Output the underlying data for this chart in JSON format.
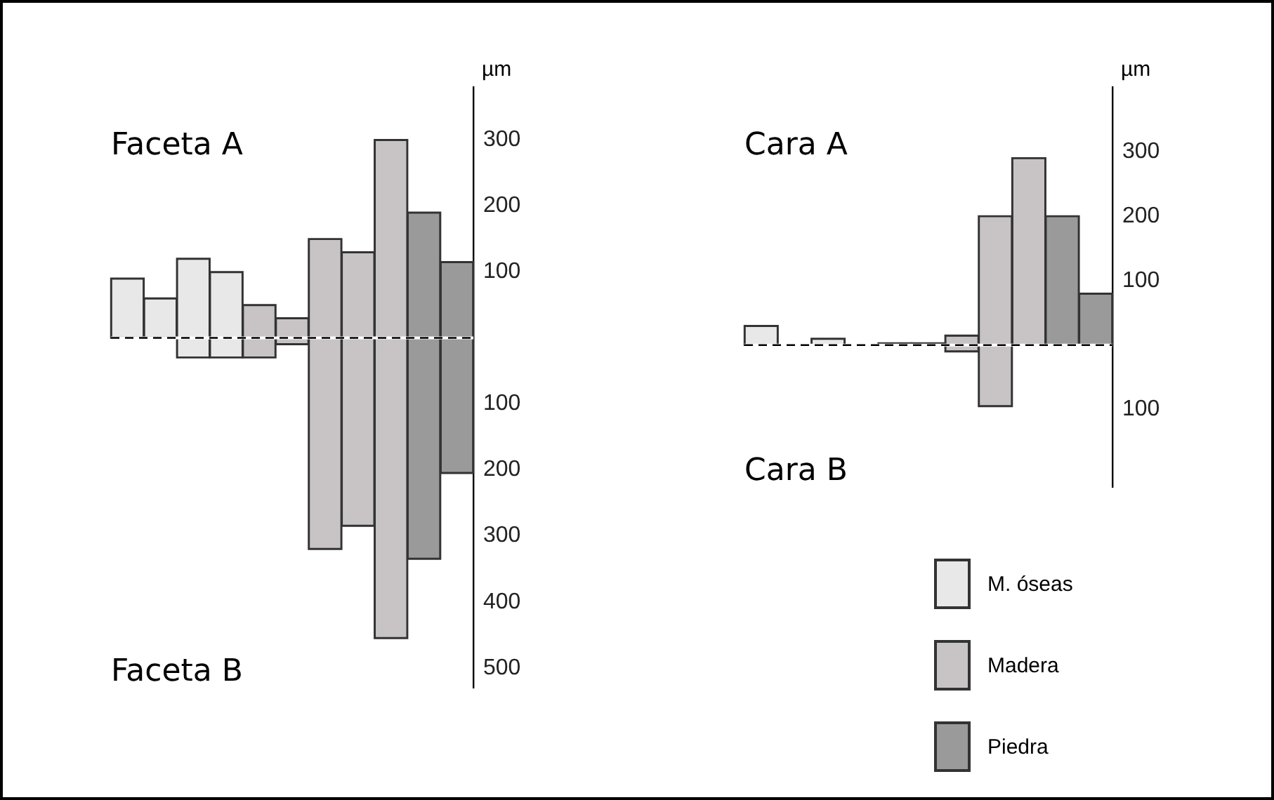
{
  "chart_data": [
    {
      "type": "bar",
      "categories": [
        null,
        null,
        null,
        null,
        null,
        null,
        null,
        null,
        null,
        null,
        null
      ],
      "series": [
        {
          "color": "#e8e8e8",
          "values": [
            90,
            60,
            150,
            130,
            null,
            null,
            null,
            null,
            null,
            null,
            null
          ],
          "base": [
            0,
            0,
            -30,
            -30,
            null,
            null,
            null,
            null,
            null,
            null,
            null
          ]
        },
        {
          "color": "#c8c4c6",
          "values": [
            null,
            null,
            null,
            null,
            80,
            40,
            470,
            415,
            755,
            null,
            null
          ],
          "base": [
            null,
            null,
            null,
            null,
            -30,
            -10,
            -320,
            -285,
            -455,
            null,
            null
          ]
        },
        {
          "color": "#9a9a9a",
          "values": [
            null,
            null,
            null,
            null,
            null,
            null,
            null,
            null,
            null,
            525,
            320
          ],
          "base": [
            null,
            null,
            null,
            null,
            null,
            null,
            null,
            null,
            null,
            -335,
            -205
          ]
        }
      ],
      "ylabel": "µm",
      "ylim": [
        -530,
        380
      ],
      "yticks": [
        {
          "value": 300,
          "label": "300"
        },
        {
          "value": 200,
          "label": "200"
        },
        {
          "value": 100,
          "label": "100"
        },
        {
          "value": -100,
          "label": "100"
        },
        {
          "value": -200,
          "label": "200"
        },
        {
          "value": -300,
          "label": "300"
        },
        {
          "value": -400,
          "label": "400"
        },
        {
          "value": -500,
          "label": "500"
        }
      ],
      "annotations": [
        "Faceta A",
        "Faceta B"
      ],
      "ref_lines": [
        {
          "axis": "y",
          "value": 0,
          "line_style": "dashed",
          "color": "#000000"
        }
      ],
      "tick_labels": "y",
      "grid": false,
      "legend": false
    },
    {
      "type": "bar",
      "categories": [
        null,
        null,
        null,
        null,
        null,
        null,
        null,
        null,
        null,
        null,
        null
      ],
      "series": [
        {
          "name": "M. óseas",
          "color": "#e8e8e8",
          "values": [
            30,
            null,
            10,
            null,
            3,
            3,
            null,
            null,
            null,
            null,
            null
          ],
          "base": [
            0,
            null,
            0,
            null,
            0,
            0,
            null,
            null,
            null,
            null,
            null
          ]
        },
        {
          "name": "Madera",
          "color": "#c8c4c6",
          "values": [
            null,
            null,
            null,
            null,
            null,
            null,
            25,
            295,
            290,
            null,
            null
          ],
          "base": [
            null,
            null,
            null,
            null,
            null,
            null,
            -10,
            -95,
            0,
            null,
            null
          ]
        },
        {
          "name": "Piedra",
          "color": "#9a9a9a",
          "values": [
            null,
            null,
            null,
            null,
            null,
            null,
            null,
            null,
            null,
            200,
            80
          ],
          "base": [
            null,
            null,
            null,
            null,
            null,
            null,
            null,
            null,
            null,
            0,
            0
          ]
        }
      ],
      "ylabel": "µm",
      "ylim": [
        -220,
        400
      ],
      "yticks": [
        {
          "value": 300,
          "label": "300"
        },
        {
          "value": 200,
          "label": "200"
        },
        {
          "value": 100,
          "label": "100"
        },
        {
          "value": -100,
          "label": "100"
        }
      ],
      "annotations": [
        "Cara A",
        "Cara B"
      ],
      "ref_lines": [
        {
          "axis": "y",
          "value": 0,
          "line_style": "dashed",
          "color": "#000000"
        }
      ],
      "tick_labels": "y",
      "grid": false,
      "legend": "bottom right"
    }
  ]
}
